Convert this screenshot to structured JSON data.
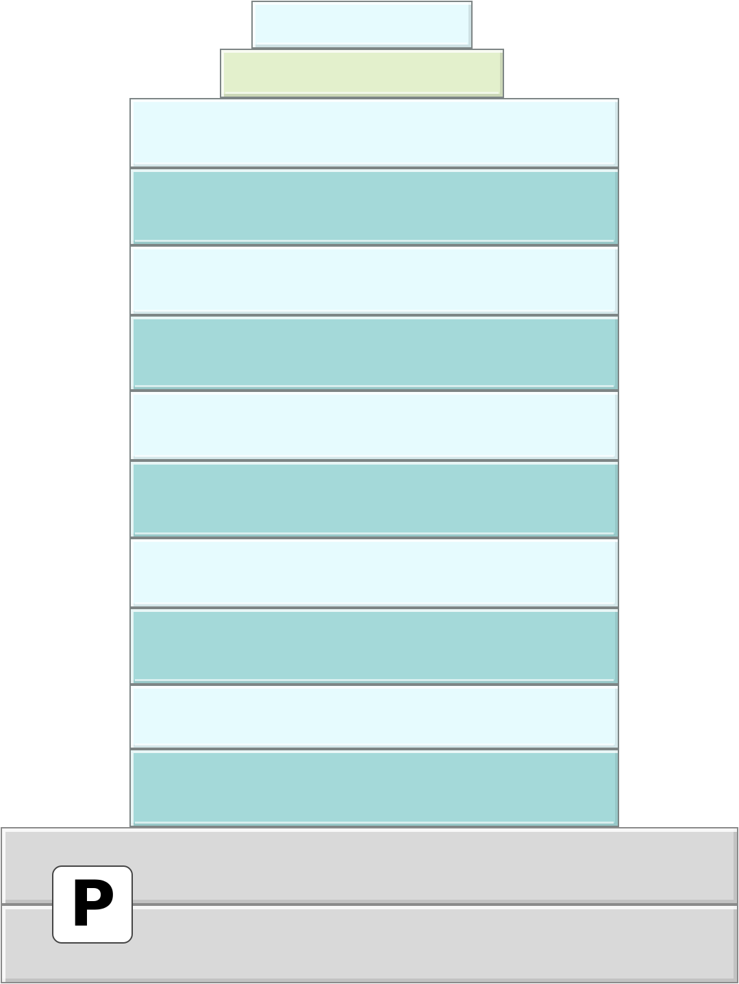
{
  "building": {
    "antenna_color": "#e6fbfe",
    "roof_band_color": "#e3f0cc",
    "floor_light_color": "#e6fbfe",
    "floor_dark_color": "#a4d9d9",
    "outline_color": "#7d8585",
    "floors": [
      {
        "tone": "light"
      },
      {
        "tone": "dark"
      },
      {
        "tone": "light"
      },
      {
        "tone": "dark"
      },
      {
        "tone": "light"
      },
      {
        "tone": "dark"
      },
      {
        "tone": "light"
      },
      {
        "tone": "dark"
      },
      {
        "tone": "light"
      },
      {
        "tone": "dark"
      }
    ]
  },
  "podium": {
    "color": "#d9d9d9",
    "levels": 2
  },
  "parking_sign": {
    "icon": "parking-icon",
    "label": "P"
  }
}
